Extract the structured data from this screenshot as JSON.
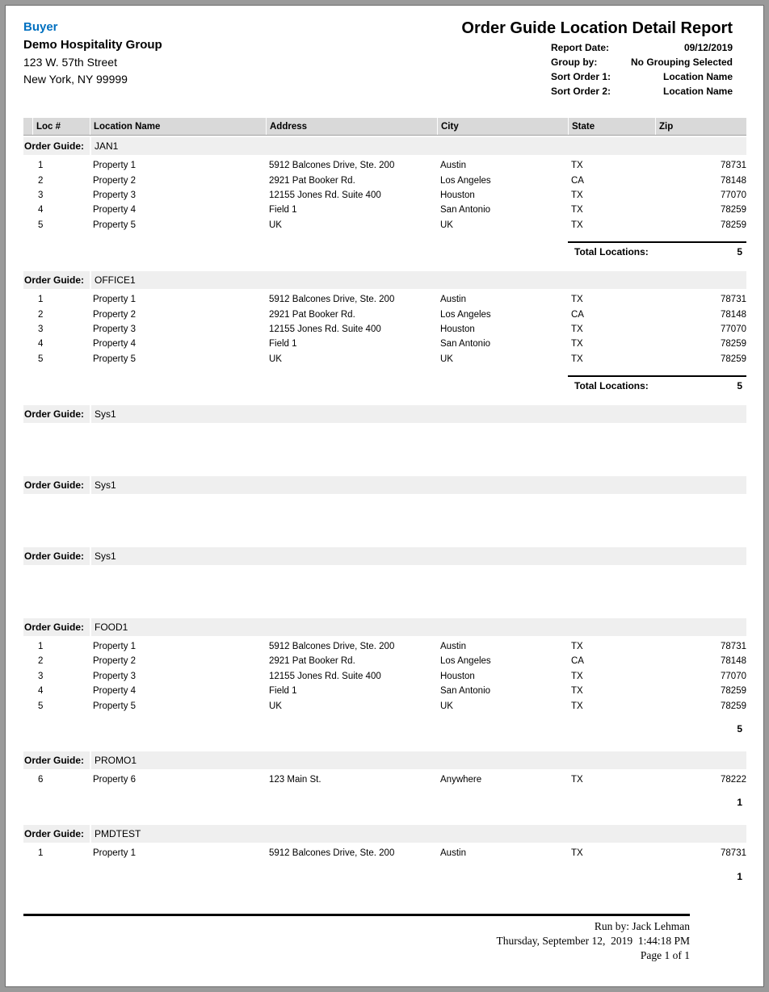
{
  "colors": {
    "accent": "#0070C0",
    "table_header_bg": "#d9d9d9",
    "group_row_bg": "#efefef",
    "frame": "#9a9a9a"
  },
  "header": {
    "buyer_label": "Buyer",
    "company": "Demo Hospitality Group",
    "address_line1": "123 W. 57th Street",
    "address_line2": "New York, NY 99999",
    "title": "Order Guide Location Detail Report",
    "meta": [
      {
        "label": "Report Date:",
        "value": "09/12/2019"
      },
      {
        "label": "Group by:",
        "value": "No Grouping Selected"
      },
      {
        "label": "Sort Order 1:",
        "value": "Location Name"
      },
      {
        "label": "Sort Order 2:",
        "value": "Location Name"
      }
    ]
  },
  "table": {
    "columns": [
      "Loc #",
      "Location Name",
      "Address",
      "City",
      "State",
      "Zip"
    ],
    "group_label": "Order Guide:",
    "total_label": "Total Locations:",
    "groups": [
      {
        "name": "JAN1",
        "total": "5",
        "total_style": "labeled",
        "rows": [
          [
            "1",
            "Property 1",
            "5912 Balcones Drive, Ste. 200",
            "Austin",
            "TX",
            "78731"
          ],
          [
            "2",
            "Property 2",
            "2921 Pat Booker Rd.",
            "Los Angeles",
            "CA",
            "78148"
          ],
          [
            "3",
            "Property 3",
            "12155 Jones Rd. Suite 400",
            "Houston",
            "TX",
            "77070"
          ],
          [
            "4",
            "Property 4",
            "Field 1",
            "San Antonio",
            "TX",
            "78259"
          ],
          [
            "5",
            "Property 5",
            "UK",
            "UK",
            "TX",
            "78259"
          ]
        ]
      },
      {
        "name": "OFFICE1",
        "total": "5",
        "total_style": "labeled",
        "rows": [
          [
            "1",
            "Property 1",
            "5912 Balcones Drive, Ste. 200",
            "Austin",
            "TX",
            "78731"
          ],
          [
            "2",
            "Property 2",
            "2921 Pat Booker Rd.",
            "Los Angeles",
            "CA",
            "78148"
          ],
          [
            "3",
            "Property 3",
            "12155 Jones Rd. Suite 400",
            "Houston",
            "TX",
            "77070"
          ],
          [
            "4",
            "Property 4",
            "Field 1",
            "San Antonio",
            "TX",
            "78259"
          ],
          [
            "5",
            "Property 5",
            "UK",
            "UK",
            "TX",
            "78259"
          ]
        ]
      },
      {
        "name": "Sys1",
        "total": "",
        "total_style": "none",
        "rows": []
      },
      {
        "name": "Sys1",
        "total": "",
        "total_style": "none",
        "rows": []
      },
      {
        "name": "Sys1",
        "total": "",
        "total_style": "none",
        "rows": []
      },
      {
        "name": "FOOD1",
        "total": "5",
        "total_style": "plain",
        "rows": [
          [
            "1",
            "Property 1",
            "5912 Balcones Drive, Ste. 200",
            "Austin",
            "TX",
            "78731"
          ],
          [
            "2",
            "Property 2",
            "2921 Pat Booker Rd.",
            "Los Angeles",
            "CA",
            "78148"
          ],
          [
            "3",
            "Property 3",
            "12155 Jones Rd. Suite 400",
            "Houston",
            "TX",
            "77070"
          ],
          [
            "4",
            "Property 4",
            "Field 1",
            "San Antonio",
            "TX",
            "78259"
          ],
          [
            "5",
            "Property 5",
            "UK",
            "UK",
            "TX",
            "78259"
          ]
        ]
      },
      {
        "name": "PROMO1",
        "total": "1",
        "total_style": "plain",
        "rows": [
          [
            "6",
            "Property 6",
            "123 Main St.",
            "Anywhere",
            "TX",
            "78222"
          ]
        ]
      },
      {
        "name": "PMDTEST",
        "total": "1",
        "total_style": "plain",
        "rows": [
          [
            "1",
            "Property 1",
            "5912 Balcones Drive, Ste. 200",
            "Austin",
            "TX",
            "78731"
          ]
        ]
      }
    ]
  },
  "footer": {
    "run_by": "Run by: Jack Lehman",
    "datetime": "Thursday, September 12,  2019  1:44:18 PM",
    "page": "Page 1 of 1"
  }
}
